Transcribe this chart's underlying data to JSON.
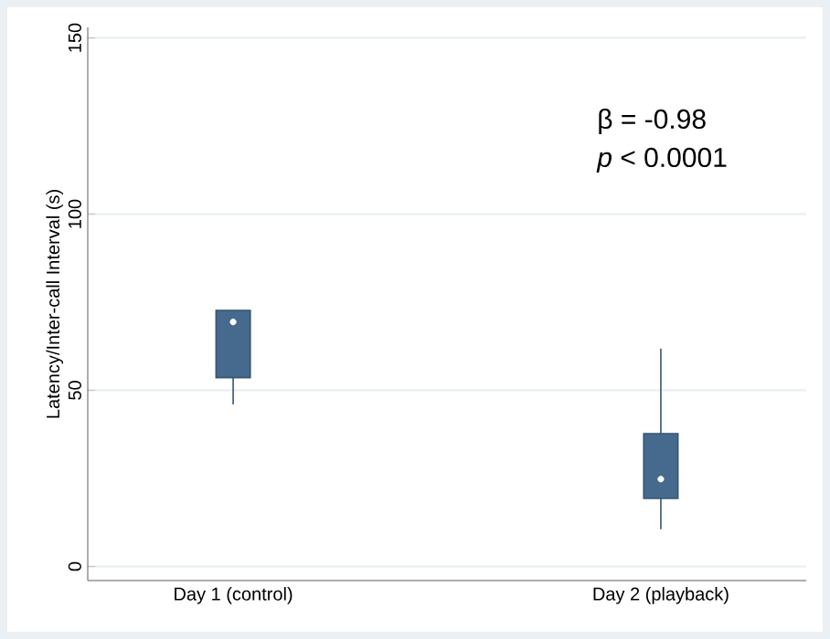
{
  "chart_data": {
    "type": "box",
    "ylabel": "Latency/Inter-call Interval (s)",
    "categories": [
      "Day 1 (control)",
      "Day 2 (playback)"
    ],
    "boxes": [
      {
        "low": 46,
        "q1": 53.6,
        "median": 69.4,
        "q3": 72.7,
        "high": 72.7
      },
      {
        "low": 10.6,
        "q1": 19.3,
        "median": 24.8,
        "q3": 37.7,
        "high": 61.8
      }
    ],
    "color": "#456a8e",
    "ylim": [
      -4,
      153
    ],
    "yticks": [
      0,
      50,
      100,
      150
    ],
    "grid": "y",
    "annotations": [
      "β = -0.98",
      "*p* < 0.0001"
    ]
  }
}
